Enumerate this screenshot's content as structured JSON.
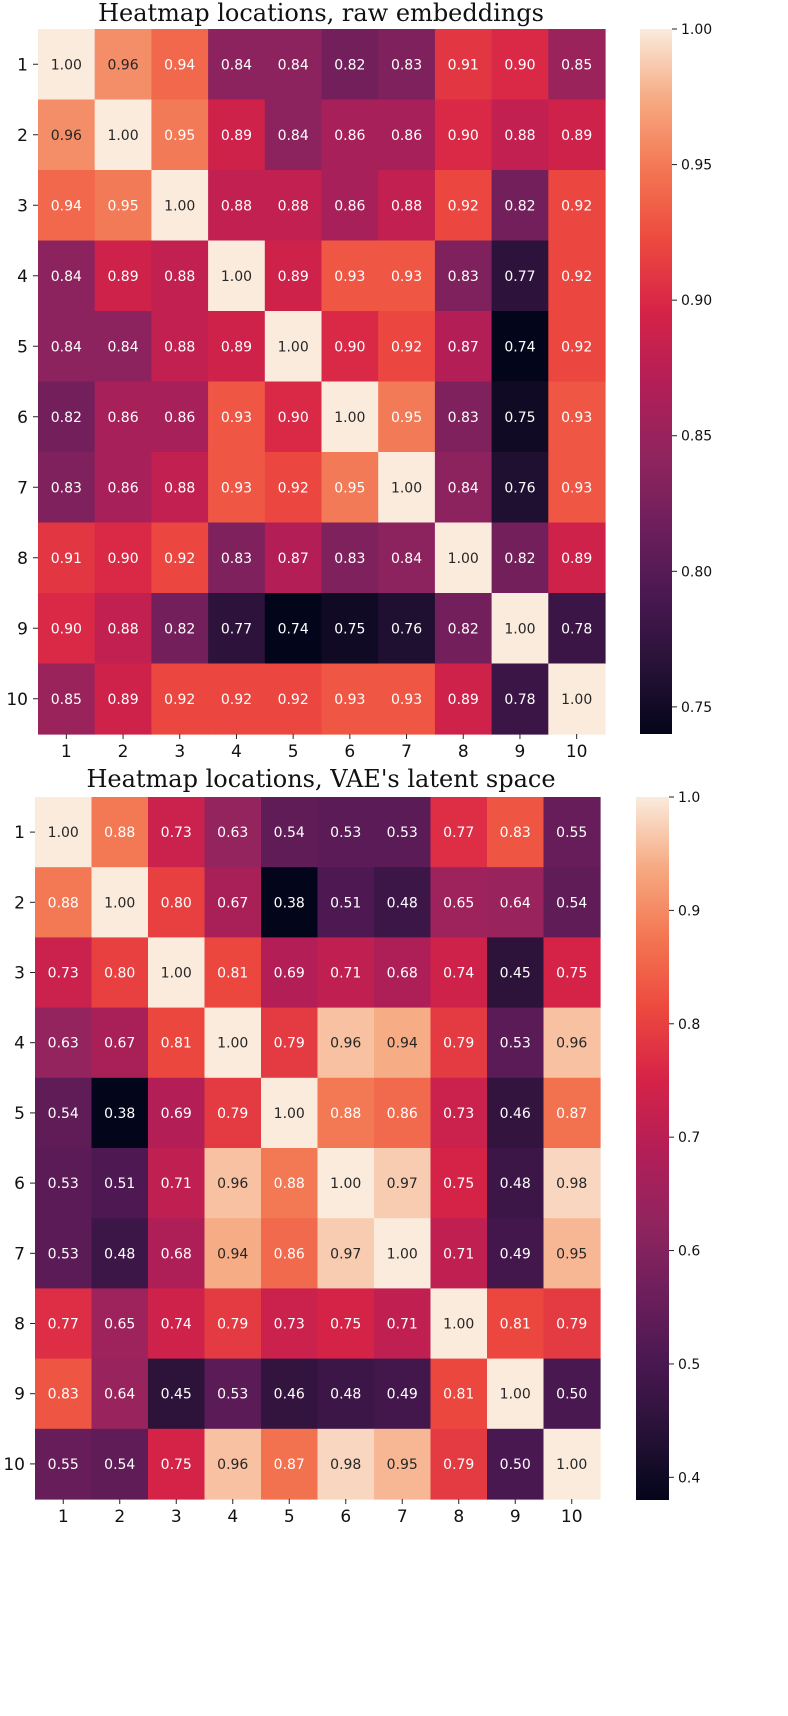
{
  "chart_data": [
    {
      "type": "heatmap",
      "title": "Heatmap locations, raw embeddings",
      "x_categories": [
        "1",
        "2",
        "3",
        "4",
        "5",
        "6",
        "7",
        "8",
        "9",
        "10"
      ],
      "y_categories": [
        "1",
        "2",
        "3",
        "4",
        "5",
        "6",
        "7",
        "8",
        "9",
        "10"
      ],
      "values": [
        [
          1.0,
          0.96,
          0.94,
          0.84,
          0.84,
          0.82,
          0.83,
          0.91,
          0.9,
          0.85
        ],
        [
          0.96,
          1.0,
          0.95,
          0.89,
          0.84,
          0.86,
          0.86,
          0.9,
          0.88,
          0.89
        ],
        [
          0.94,
          0.95,
          1.0,
          0.88,
          0.88,
          0.86,
          0.88,
          0.92,
          0.82,
          0.92
        ],
        [
          0.84,
          0.89,
          0.88,
          1.0,
          0.89,
          0.93,
          0.93,
          0.83,
          0.77,
          0.92
        ],
        [
          0.84,
          0.84,
          0.88,
          0.89,
          1.0,
          0.9,
          0.92,
          0.87,
          0.74,
          0.92
        ],
        [
          0.82,
          0.86,
          0.86,
          0.93,
          0.9,
          1.0,
          0.95,
          0.83,
          0.75,
          0.93
        ],
        [
          0.83,
          0.86,
          0.88,
          0.93,
          0.92,
          0.95,
          1.0,
          0.84,
          0.76,
          0.93
        ],
        [
          0.91,
          0.9,
          0.92,
          0.83,
          0.87,
          0.83,
          0.84,
          1.0,
          0.82,
          0.89
        ],
        [
          0.9,
          0.88,
          0.82,
          0.77,
          0.74,
          0.75,
          0.76,
          0.82,
          1.0,
          0.78
        ],
        [
          0.85,
          0.89,
          0.92,
          0.92,
          0.92,
          0.93,
          0.93,
          0.89,
          0.78,
          1.0
        ]
      ],
      "colorbar": {
        "min": 0.74,
        "max": 1.0,
        "ticks": [
          "0.75",
          "0.80",
          "0.85",
          "0.90",
          "0.95",
          "1.00"
        ],
        "colormap": "rocket"
      }
    },
    {
      "type": "heatmap",
      "title": "Heatmap locations, VAE's latent space",
      "x_categories": [
        "1",
        "2",
        "3",
        "4",
        "5",
        "6",
        "7",
        "8",
        "9",
        "10"
      ],
      "y_categories": [
        "1",
        "2",
        "3",
        "4",
        "5",
        "6",
        "7",
        "8",
        "9",
        "10"
      ],
      "values": [
        [
          1.0,
          0.88,
          0.73,
          0.63,
          0.54,
          0.53,
          0.53,
          0.77,
          0.83,
          0.55
        ],
        [
          0.88,
          1.0,
          0.8,
          0.67,
          0.38,
          0.51,
          0.48,
          0.65,
          0.64,
          0.54
        ],
        [
          0.73,
          0.8,
          1.0,
          0.81,
          0.69,
          0.71,
          0.68,
          0.74,
          0.45,
          0.75
        ],
        [
          0.63,
          0.67,
          0.81,
          1.0,
          0.79,
          0.96,
          0.94,
          0.79,
          0.53,
          0.96
        ],
        [
          0.54,
          0.38,
          0.69,
          0.79,
          1.0,
          0.88,
          0.86,
          0.73,
          0.46,
          0.87
        ],
        [
          0.53,
          0.51,
          0.71,
          0.96,
          0.88,
          1.0,
          0.97,
          0.75,
          0.48,
          0.98
        ],
        [
          0.53,
          0.48,
          0.68,
          0.94,
          0.86,
          0.97,
          1.0,
          0.71,
          0.49,
          0.95
        ],
        [
          0.77,
          0.65,
          0.74,
          0.79,
          0.73,
          0.75,
          0.71,
          1.0,
          0.81,
          0.79
        ],
        [
          0.83,
          0.64,
          0.45,
          0.53,
          0.46,
          0.48,
          0.49,
          0.81,
          1.0,
          0.5
        ],
        [
          0.55,
          0.54,
          0.75,
          0.96,
          0.87,
          0.98,
          0.95,
          0.79,
          0.5,
          1.0
        ]
      ],
      "colorbar": {
        "min": 0.38,
        "max": 1.0,
        "ticks": [
          "0.4",
          "0.5",
          "0.6",
          "0.7",
          "0.8",
          "0.9",
          "1.0"
        ],
        "colormap": "rocket"
      }
    }
  ]
}
